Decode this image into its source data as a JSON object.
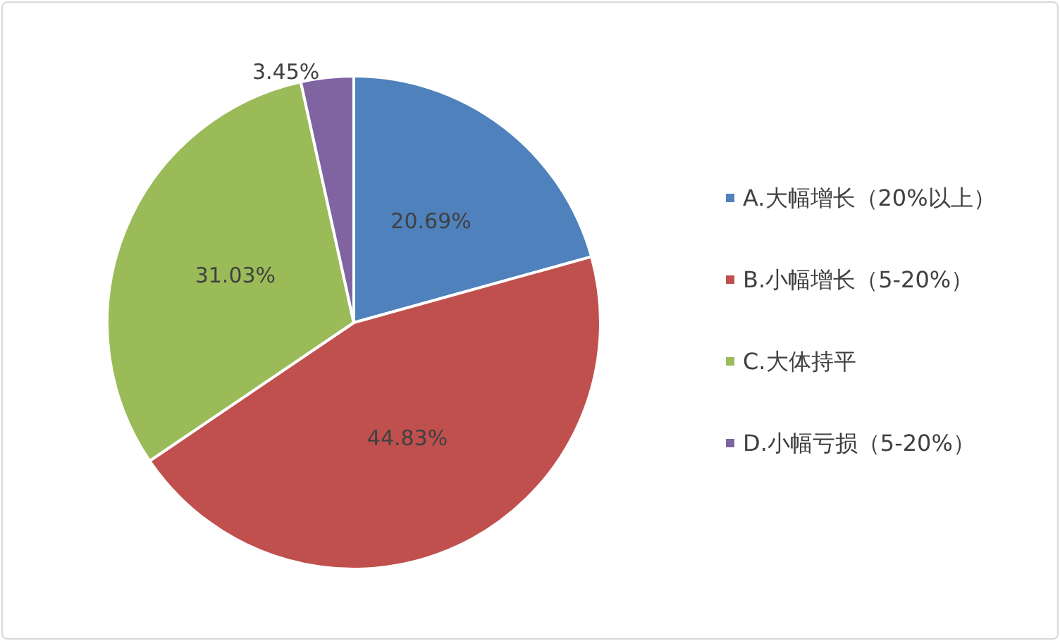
{
  "chart_data": {
    "type": "pie",
    "categories": [
      "A.大幅增长（20%以上）",
      "B.小幅增长（5-20%）",
      "C.大体持平",
      "D.小幅亏损（5-20%）"
    ],
    "values": [
      20.69,
      44.83,
      31.03,
      3.45
    ],
    "colors": [
      "#4f81bd",
      "#c0504d",
      "#9bbb59",
      "#8064a2"
    ],
    "value_labels": [
      "20.69%",
      "44.83%",
      "31.03%",
      "3.45%"
    ],
    "legend": "right"
  }
}
